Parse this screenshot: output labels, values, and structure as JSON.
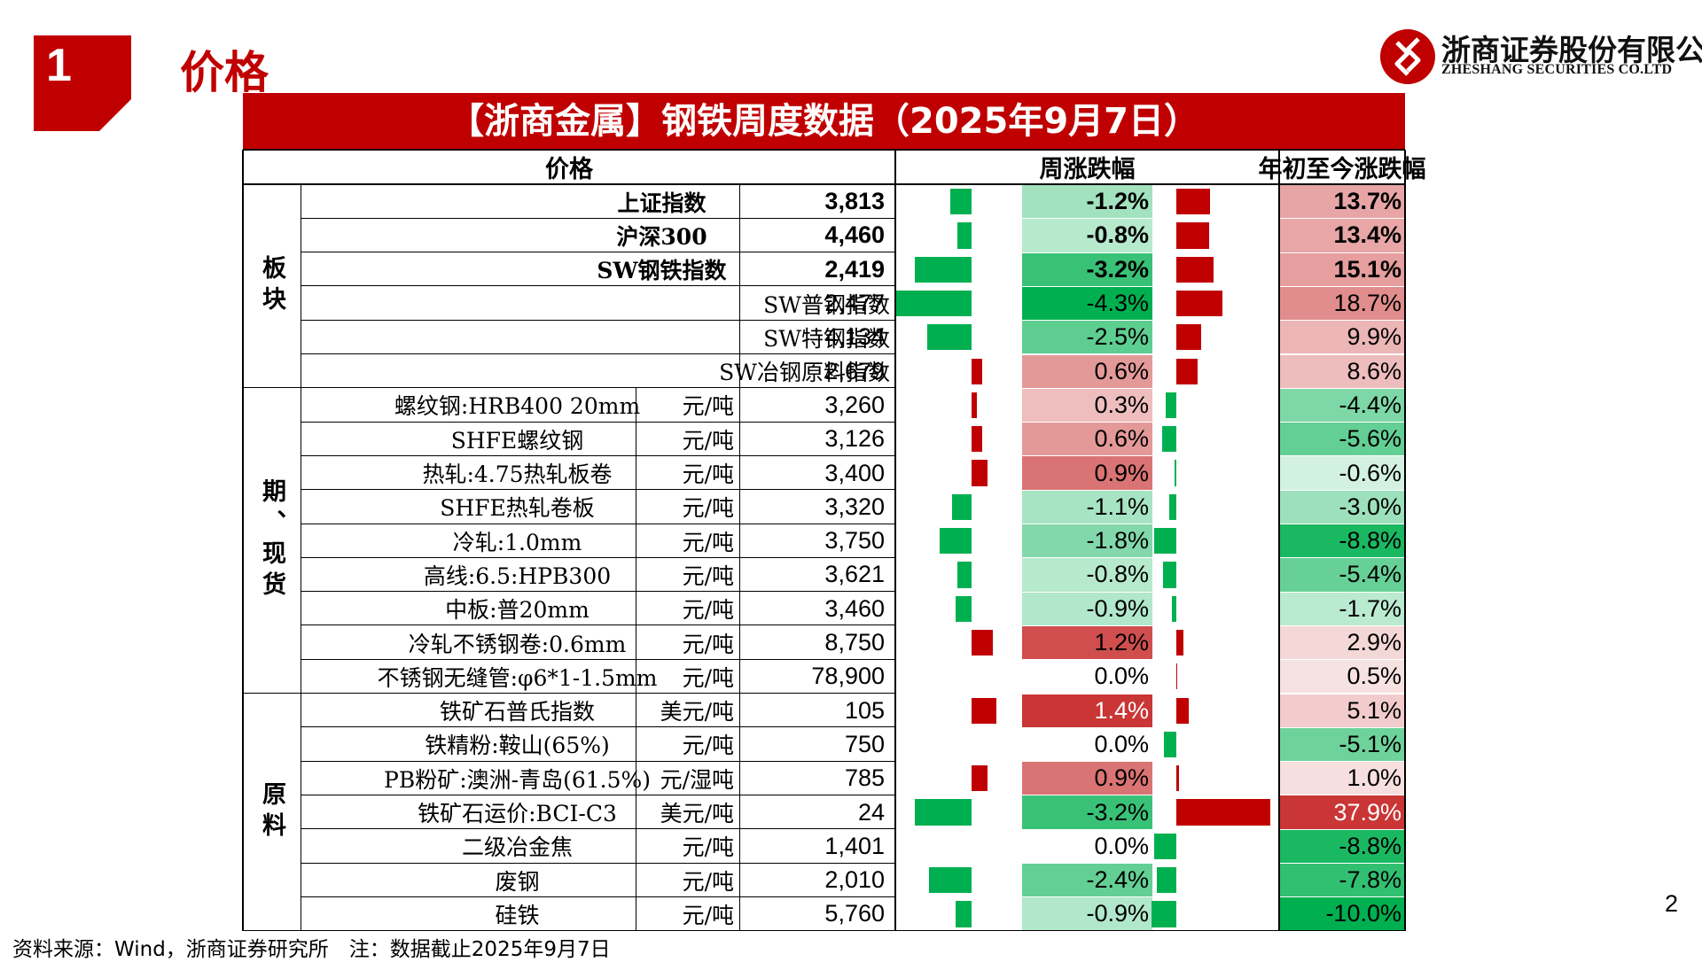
{
  "header": {
    "section_number": "1",
    "title": "价格",
    "company_cn": "浙商证券股份有限公司",
    "company_en": "ZHESHANG SECURITIES CO.LTD"
  },
  "table": {
    "title": "【浙商金属】钢铁周度数据（2025年9月7日）",
    "headers": {
      "price": "价格",
      "weekly": "周涨跌幅",
      "ytd": "年初至今涨跌幅"
    },
    "groups": [
      {
        "label": "板块",
        "rows": [
          0,
          5
        ]
      },
      {
        "label": "期、现货",
        "rows": [
          6,
          14
        ]
      },
      {
        "label": "原料",
        "rows": [
          15,
          21
        ]
      }
    ],
    "rows": [
      {
        "name": "上证指数",
        "unit": "",
        "price": "3,813",
        "weekly": "-1.2%",
        "ytd": "13.7%",
        "bold": true
      },
      {
        "name": "沪深300",
        "unit": "",
        "price": "4,460",
        "weekly": "-0.8%",
        "ytd": "13.4%",
        "bold": true
      },
      {
        "name": "SW钢铁指数",
        "unit": "",
        "price": "2,419",
        "weekly": "-3.2%",
        "ytd": "15.1%",
        "bold": true
      },
      {
        "name": "SW普钢指数",
        "unit": "",
        "price": "2,477",
        "weekly": "-4.3%",
        "ytd": "18.7%",
        "bold": false
      },
      {
        "name": "SW特钢指数",
        "unit": "",
        "price": "4,134",
        "weekly": "-2.5%",
        "ytd": "9.9%",
        "bold": false
      },
      {
        "name": "SW冶钢原料指数",
        "unit": "",
        "price": "2,679",
        "weekly": "0.6%",
        "ytd": "8.6%",
        "bold": false
      },
      {
        "name": "螺纹钢:HRB400 20mm",
        "unit": "元/吨",
        "price": "3,260",
        "weekly": "0.3%",
        "ytd": "-4.4%",
        "bold": false
      },
      {
        "name": "SHFE螺纹钢",
        "unit": "元/吨",
        "price": "3,126",
        "weekly": "0.6%",
        "ytd": "-5.6%",
        "bold": false
      },
      {
        "name": "热轧:4.75热轧板卷",
        "unit": "元/吨",
        "price": "3,400",
        "weekly": "0.9%",
        "ytd": "-0.6%",
        "bold": false
      },
      {
        "name": "SHFE热轧卷板",
        "unit": "元/吨",
        "price": "3,320",
        "weekly": "-1.1%",
        "ytd": "-3.0%",
        "bold": false
      },
      {
        "name": "冷轧:1.0mm",
        "unit": "元/吨",
        "price": "3,750",
        "weekly": "-1.8%",
        "ytd": "-8.8%",
        "bold": false
      },
      {
        "name": "高线:6.5:HPB300",
        "unit": "元/吨",
        "price": "3,621",
        "weekly": "-0.8%",
        "ytd": "-5.4%",
        "bold": false
      },
      {
        "name": "中板:普20mm",
        "unit": "元/吨",
        "price": "3,460",
        "weekly": "-0.9%",
        "ytd": "-1.7%",
        "bold": false
      },
      {
        "name": "冷轧不锈钢卷:0.6mm",
        "unit": "元/吨",
        "price": "8,750",
        "weekly": "1.2%",
        "ytd": "2.9%",
        "bold": false
      },
      {
        "name": "不锈钢无缝管:φ6*1-1.5mm",
        "unit": "元/吨",
        "price": "78,900",
        "weekly": "0.0%",
        "ytd": "0.5%",
        "bold": false
      },
      {
        "name": "铁矿石普氏指数",
        "unit": "美元/吨",
        "price": "105",
        "weekly": "1.4%",
        "ytd": "5.1%",
        "bold": false
      },
      {
        "name": "铁精粉:鞍山(65%)",
        "unit": "元/吨",
        "price": "750",
        "weekly": "0.0%",
        "ytd": "-5.1%",
        "bold": false
      },
      {
        "name": "PB粉矿:澳洲-青岛(61.5%)",
        "unit": "元/湿吨",
        "price": "785",
        "weekly": "0.9%",
        "ytd": "1.0%",
        "bold": false
      },
      {
        "name": "铁矿石运价:BCI-C3",
        "unit": "美元/吨",
        "price": "24",
        "weekly": "-3.2%",
        "ytd": "37.9%",
        "bold": false
      },
      {
        "name": "二级冶金焦",
        "unit": "元/吨",
        "price": "1,401",
        "weekly": "0.0%",
        "ytd": "-8.8%",
        "bold": false
      },
      {
        "name": "废钢",
        "unit": "元/吨",
        "price": "2,010",
        "weekly": "-2.4%",
        "ytd": "-7.8%",
        "bold": false
      },
      {
        "name": "硅铁",
        "unit": "元/吨",
        "price": "5,760",
        "weekly": "-0.9%",
        "ytd": "-10.0%",
        "bold": false
      }
    ],
    "weekly_values": [
      -1.2,
      -0.8,
      -3.2,
      -4.3,
      -2.5,
      0.6,
      0.3,
      0.6,
      0.9,
      -1.1,
      -1.8,
      -0.8,
      -0.9,
      1.2,
      0.0,
      1.4,
      0.0,
      0.9,
      -3.2,
      0.0,
      -2.4,
      -0.9
    ],
    "ytd_values": [
      13.7,
      13.4,
      15.1,
      18.7,
      9.9,
      8.6,
      -4.4,
      -5.6,
      -0.6,
      -3.0,
      -8.8,
      -5.4,
      -1.7,
      2.9,
      0.5,
      5.1,
      -5.1,
      1.0,
      37.9,
      -8.8,
      -7.8,
      -10.0
    ]
  },
  "colors": {
    "accent_red": "#c00000",
    "bar_green": "#00b050",
    "bar_red": "#c00000"
  },
  "footer": {
    "source": "资料来源：Wind，浙商证券研究所　注：数据截止2025年9月7日",
    "page_number": "2"
  }
}
